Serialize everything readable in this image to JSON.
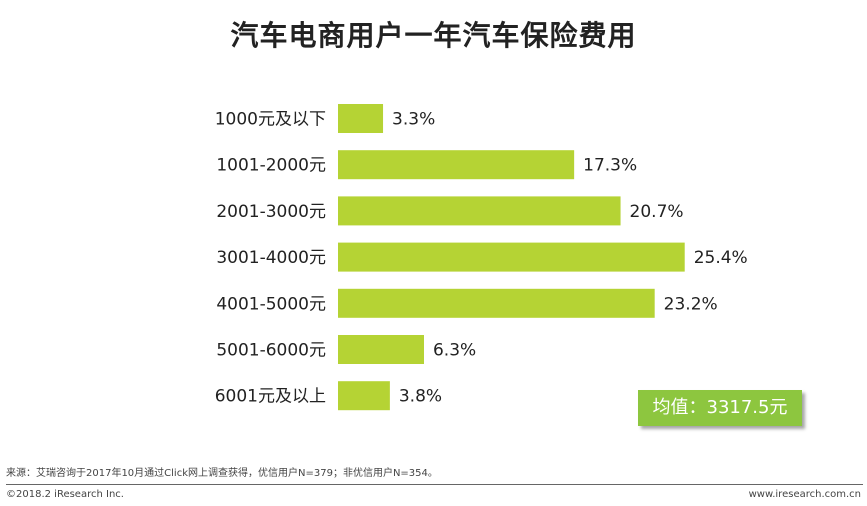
{
  "chart_data": {
    "type": "bar",
    "orientation": "horizontal",
    "title": "汽车电商用户一年汽车保险费用",
    "categories": [
      "1000元及以下",
      "1001-2000元",
      "2001-3000元",
      "3001-4000元",
      "4001-5000元",
      "5001-6000元",
      "6001元及以上"
    ],
    "values": [
      3.3,
      17.3,
      20.7,
      25.4,
      23.2,
      6.3,
      3.8
    ],
    "value_labels": [
      "3.3%",
      "17.3%",
      "20.7%",
      "25.4%",
      "23.2%",
      "6.3%",
      "3.8%"
    ],
    "unit": "%",
    "bar_color": "#b5d334",
    "grid": false,
    "legend": "none"
  },
  "average_label": "均值：3317.5元",
  "average_color": "#8dc63f",
  "footer": {
    "source": "来源：艾瑞咨询于2017年10月通过Click网上调查获得，优信用户N=379；非优信用户N=354。",
    "copyright": "©2018.2 iResearch Inc.",
    "website": "www.iresearch.com.cn"
  }
}
